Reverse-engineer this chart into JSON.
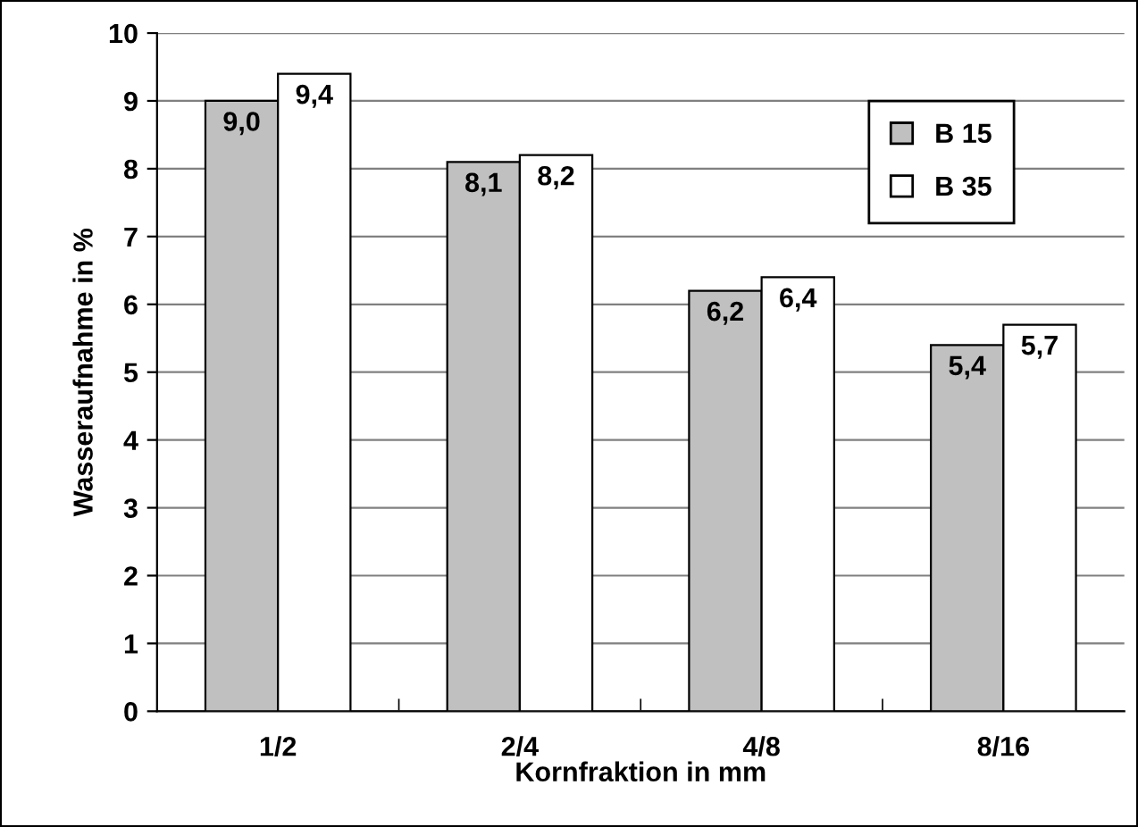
{
  "chart_data": {
    "type": "bar",
    "xlabel": "Kornfraktion in mm",
    "ylabel": "Wasseraufnahme in %",
    "categories": [
      "1/2",
      "2/4",
      "4/8",
      "8/16"
    ],
    "series": [
      {
        "name": "B 15",
        "color": "#c0c0c0",
        "values": [
          9.0,
          8.1,
          6.2,
          5.4
        ],
        "value_labels": [
          "9,0",
          "8,1",
          "6,2",
          "5,4"
        ]
      },
      {
        "name": "B 35",
        "color": "#ffffff",
        "values": [
          9.4,
          8.2,
          6.4,
          5.7
        ],
        "value_labels": [
          "9,4",
          "8,2",
          "6,4",
          "5,7"
        ]
      }
    ],
    "ylim": [
      0,
      10
    ],
    "yticks": [
      0,
      1,
      2,
      3,
      4,
      5,
      6,
      7,
      8,
      9,
      10
    ],
    "grid": "y",
    "legend": "top right"
  }
}
